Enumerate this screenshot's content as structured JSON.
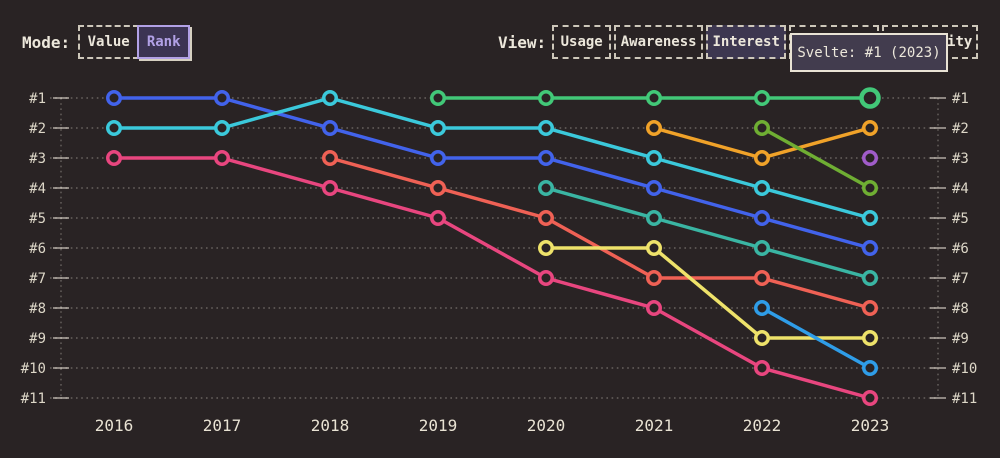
{
  "header": {
    "mode": {
      "label": "Mode:",
      "options": [
        {
          "label": "Value",
          "selected": false
        },
        {
          "label": "Rank",
          "selected": true
        }
      ]
    },
    "view": {
      "label": "View:",
      "options": [
        {
          "label": "Usage",
          "selected": false
        },
        {
          "label": "Awareness",
          "selected": false
        },
        {
          "label": "Interest",
          "selected": true
        },
        {
          "label": "Retention",
          "selected": false
        },
        {
          "label": "Positivity",
          "selected": false
        }
      ]
    }
  },
  "tooltip": {
    "text": "Svelte: #1 (2023)"
  },
  "colors": {
    "background": "#292324",
    "text_cream": "#ece7db",
    "selected_purple_border": "#b2a1e6",
    "selected_fill": "#3d3750",
    "tooltip_fill": "#423c4e"
  },
  "chart_data": {
    "type": "line",
    "subtype": "bump-rank-chart",
    "title": "",
    "xlabel": "",
    "ylabel": "",
    "legend_position": "none",
    "grid": "dotted horizontal rank gridlines; dotted vertical axis lines left and right",
    "years": [
      "2016",
      "2017",
      "2018",
      "2019",
      "2020",
      "2021",
      "2022",
      "2023"
    ],
    "ranks": [
      "#1",
      "#2",
      "#3",
      "#4",
      "#5",
      "#6",
      "#7",
      "#8",
      "#9",
      "#10",
      "#11"
    ],
    "ylim_note": "rank 1 (top) to rank 11 (bottom), labels shown on both sides",
    "highlighted_point": {
      "series": "svelte-green",
      "year": "2023",
      "rank": 1
    },
    "series": [
      {
        "name": "royal-blue",
        "color": "#4263eb",
        "values": [
          1,
          1,
          2,
          3,
          3,
          4,
          5,
          6
        ]
      },
      {
        "name": "cyan",
        "color": "#3bc9db",
        "values": [
          2,
          2,
          1,
          2,
          2,
          3,
          4,
          5
        ]
      },
      {
        "name": "pink",
        "color": "#e8467f",
        "values": [
          3,
          3,
          4,
          5,
          7,
          8,
          10,
          11
        ]
      },
      {
        "name": "salmon",
        "color": "#ef6155",
        "values": [
          null,
          null,
          3,
          4,
          5,
          7,
          7,
          8
        ]
      },
      {
        "name": "svelte-green",
        "color": "#42c878",
        "values": [
          null,
          null,
          null,
          1,
          1,
          1,
          1,
          1
        ],
        "highlight_last": true
      },
      {
        "name": "teal",
        "color": "#3ab5a3",
        "values": [
          null,
          null,
          null,
          null,
          4,
          5,
          6,
          7
        ]
      },
      {
        "name": "yellow",
        "color": "#eee26a",
        "values": [
          null,
          null,
          null,
          null,
          6,
          6,
          9,
          9
        ]
      },
      {
        "name": "amber",
        "color": "#f0a229",
        "values": [
          null,
          null,
          null,
          null,
          null,
          2,
          3,
          2
        ]
      },
      {
        "name": "olive-green",
        "color": "#6fae33",
        "values": [
          null,
          null,
          null,
          null,
          null,
          null,
          2,
          4
        ]
      },
      {
        "name": "sky-blue",
        "color": "#2f9de8",
        "values": [
          null,
          null,
          null,
          null,
          null,
          null,
          8,
          10
        ]
      },
      {
        "name": "purple",
        "color": "#a05cc9",
        "values": [
          null,
          null,
          null,
          null,
          null,
          null,
          null,
          3
        ]
      }
    ]
  }
}
